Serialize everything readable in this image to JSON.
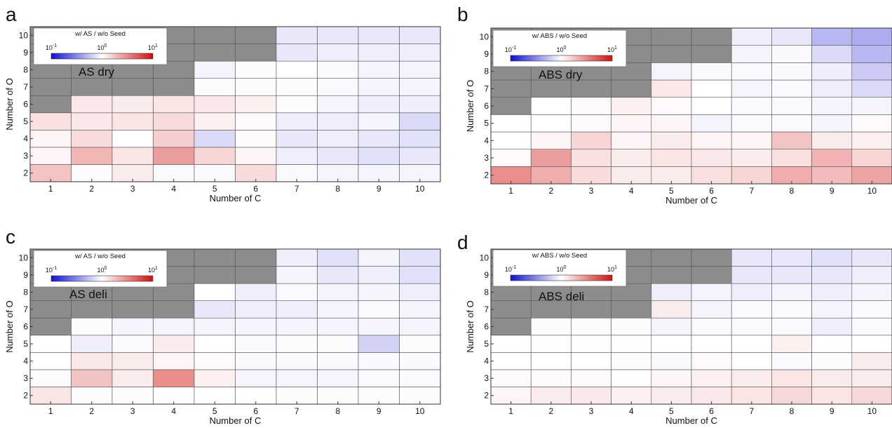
{
  "colors": {
    "missing": "#8c8c8c",
    "low": "#1010d0",
    "mid": "#ffffff",
    "high": "#d01010",
    "grid": "#555555"
  },
  "chart_data": [
    {
      "type": "heatmap",
      "panel_letter": "a",
      "panel_label": "AS dry",
      "legend_title": "w/ AS / w/o Seed",
      "legend_ticks": [
        "10",
        "10",
        "10"
      ],
      "legend_exps": [
        "-1",
        "0",
        "1"
      ],
      "scale": "log10",
      "clim": [
        0.1,
        10
      ],
      "xlabel": "Number of C",
      "ylabel": "Number of O",
      "x": [
        1,
        2,
        3,
        4,
        5,
        6,
        7,
        8,
        9,
        10
      ],
      "y": [
        2,
        3,
        4,
        5,
        6,
        7,
        8,
        9,
        10
      ],
      "values": [
        [
          1.8,
          0.97,
          1.2,
          0.95,
          0.95,
          1.4,
          0.95,
          0.9,
          0.9,
          0.9
        ],
        [
          1.1,
          2.0,
          1.3,
          2.6,
          1.5,
          1.1,
          0.85,
          0.8,
          0.75,
          0.8
        ],
        [
          1.1,
          1.4,
          1.0,
          1.6,
          0.7,
          1.05,
          0.8,
          0.85,
          0.8,
          0.75
        ],
        [
          1.35,
          1.25,
          1.3,
          1.4,
          1.15,
          1.05,
          0.85,
          0.85,
          0.9,
          0.7
        ],
        [
          null,
          1.25,
          1.2,
          1.3,
          1.25,
          1.15,
          0.97,
          0.9,
          0.85,
          0.85
        ],
        [
          null,
          null,
          null,
          null,
          0.97,
          0.97,
          0.97,
          0.95,
          0.9,
          0.9
        ],
        [
          null,
          null,
          null,
          null,
          0.9,
          0.97,
          1.0,
          0.95,
          0.9,
          0.9
        ],
        [
          null,
          null,
          null,
          null,
          null,
          null,
          0.8,
          0.85,
          0.85,
          0.85
        ],
        [
          null,
          null,
          null,
          null,
          null,
          null,
          0.8,
          0.8,
          0.8,
          0.8
        ]
      ]
    },
    {
      "type": "heatmap",
      "panel_letter": "b",
      "panel_label": "ABS dry",
      "legend_title": "w/ ABS / w/o Seed",
      "legend_ticks": [
        "10",
        "10",
        "10"
      ],
      "legend_exps": [
        "-1",
        "0",
        "1"
      ],
      "scale": "log10",
      "clim": [
        0.1,
        10
      ],
      "xlabel": "Number of C",
      "ylabel": "Number of O",
      "x": [
        1,
        2,
        3,
        4,
        5,
        6,
        7,
        8,
        9,
        10
      ],
      "y": [
        2,
        3,
        4,
        5,
        6,
        7,
        8,
        9,
        10
      ],
      "values": [
        [
          3.0,
          2.2,
          1.4,
          1.2,
          1.2,
          1.35,
          1.5,
          2.2,
          1.9,
          2.4
        ],
        [
          1.05,
          2.6,
          1.35,
          1.2,
          1.3,
          1.25,
          1.2,
          1.35,
          2.1,
          1.5
        ],
        [
          1.0,
          1.1,
          1.5,
          1.1,
          1.2,
          1.1,
          1.1,
          1.8,
          1.2,
          1.15
        ],
        [
          1.0,
          1.0,
          1.05,
          1.1,
          1.1,
          0.9,
          0.95,
          0.95,
          0.9,
          1.05
        ],
        [
          null,
          1.0,
          1.05,
          1.15,
          1.05,
          1.0,
          0.95,
          0.95,
          0.9,
          0.9
        ],
        [
          null,
          null,
          null,
          null,
          1.25,
          1.0,
          0.9,
          0.95,
          0.85,
          0.7
        ],
        [
          null,
          null,
          null,
          null,
          0.9,
          0.95,
          0.95,
          0.95,
          0.85,
          0.6
        ],
        [
          null,
          null,
          null,
          null,
          null,
          null,
          0.9,
          0.95,
          0.7,
          0.5
        ],
        [
          null,
          null,
          null,
          null,
          null,
          null,
          0.85,
          0.8,
          0.5,
          0.45
        ]
      ]
    },
    {
      "type": "heatmap",
      "panel_letter": "c",
      "panel_label": "AS deli",
      "legend_title": "w/ AS / w/o Seed",
      "legend_ticks": [
        "10",
        "10",
        "10"
      ],
      "legend_exps": [
        "-1",
        "0",
        "1"
      ],
      "scale": "log10",
      "clim": [
        0.1,
        10
      ],
      "xlabel": "Number of C",
      "ylabel": "Number of O",
      "x": [
        1,
        2,
        3,
        4,
        5,
        6,
        7,
        8,
        9,
        10
      ],
      "y": [
        2,
        3,
        4,
        5,
        6,
        7,
        8,
        9,
        10
      ],
      "values": [
        [
          1.3,
          0.97,
          0.97,
          1.0,
          1.0,
          1.0,
          0.97,
          0.97,
          0.97,
          0.97
        ],
        [
          0.97,
          1.8,
          1.2,
          3.0,
          1.15,
          0.9,
          0.9,
          0.9,
          0.95,
          0.95
        ],
        [
          1.0,
          1.25,
          1.2,
          1.1,
          1.05,
          0.95,
          0.95,
          0.95,
          0.95,
          0.95
        ],
        [
          1.0,
          0.85,
          0.95,
          1.2,
          1.0,
          0.95,
          0.97,
          0.97,
          0.65,
          0.97
        ],
        [
          null,
          0.97,
          0.9,
          0.9,
          0.9,
          0.9,
          0.9,
          0.9,
          0.9,
          0.9
        ],
        [
          null,
          null,
          null,
          null,
          0.8,
          0.85,
          0.85,
          0.9,
          0.95,
          0.9
        ],
        [
          null,
          null,
          null,
          null,
          1.0,
          0.85,
          0.95,
          0.9,
          0.9,
          0.85
        ],
        [
          null,
          null,
          null,
          null,
          null,
          null,
          0.9,
          0.8,
          0.85,
          0.75
        ],
        [
          null,
          null,
          null,
          null,
          null,
          null,
          0.85,
          0.75,
          0.9,
          0.75
        ]
      ]
    },
    {
      "type": "heatmap",
      "panel_letter": "d",
      "panel_label": "ABS deli",
      "legend_title": "w/ ABS / w/o Seed",
      "legend_ticks": [
        "10",
        "10",
        "10"
      ],
      "legend_exps": [
        "-1",
        "0",
        "1"
      ],
      "scale": "log10",
      "clim": [
        0.1,
        10
      ],
      "xlabel": "Number of C",
      "ylabel": "Number of O",
      "x": [
        1,
        2,
        3,
        4,
        5,
        6,
        7,
        8,
        9,
        10
      ],
      "y": [
        2,
        3,
        4,
        5,
        6,
        7,
        8,
        9,
        10
      ],
      "values": [
        [
          1.1,
          1.2,
          1.25,
          1.15,
          1.2,
          1.25,
          1.3,
          1.45,
          1.3,
          1.45
        ],
        [
          1.05,
          1.05,
          1.05,
          1.0,
          1.1,
          1.15,
          1.2,
          1.3,
          1.2,
          1.2
        ],
        [
          1.0,
          1.0,
          1.0,
          0.97,
          0.95,
          1.05,
          1.0,
          0.95,
          0.97,
          1.2
        ],
        [
          1.0,
          1.0,
          1.0,
          1.0,
          1.0,
          1.0,
          1.0,
          1.15,
          1.0,
          1.0
        ],
        [
          null,
          0.97,
          0.97,
          0.97,
          0.9,
          0.95,
          0.95,
          0.95,
          0.85,
          0.95
        ],
        [
          null,
          null,
          null,
          null,
          1.2,
          0.9,
          0.95,
          0.95,
          0.9,
          0.95
        ],
        [
          null,
          null,
          null,
          null,
          0.85,
          0.9,
          0.85,
          0.9,
          0.85,
          0.9
        ],
        [
          null,
          null,
          null,
          null,
          null,
          null,
          0.8,
          0.8,
          0.8,
          0.85
        ],
        [
          null,
          null,
          null,
          null,
          null,
          null,
          0.8,
          0.8,
          0.75,
          0.8
        ]
      ]
    }
  ]
}
